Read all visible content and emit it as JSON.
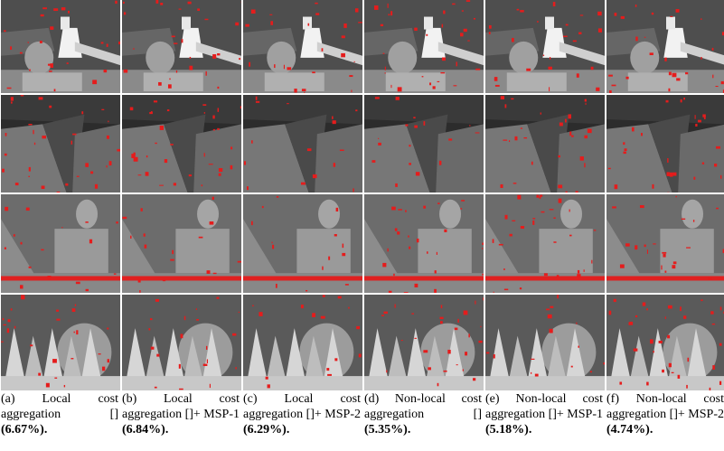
{
  "figure": {
    "panels": [
      {
        "caption": "(a) Local cost aggregation []",
        "error": "(6.67%)."
      },
      {
        "caption": "(b) Local cost aggregation []+ MSP-1",
        "error": "(6.84%)."
      },
      {
        "caption": "(c) Local cost aggregation []+ MSP-2",
        "error": "(6.29%)."
      },
      {
        "caption": "(d) Non-local cost aggregation []",
        "error": "(5.35%)."
      },
      {
        "caption": "(e) Non-local cost aggregation []+ MSP-1",
        "error": "(5.18%)."
      },
      {
        "caption": "(f) Non-local cost aggregation []+ MSP-2",
        "error": "(4.74%)."
      }
    ]
  }
}
